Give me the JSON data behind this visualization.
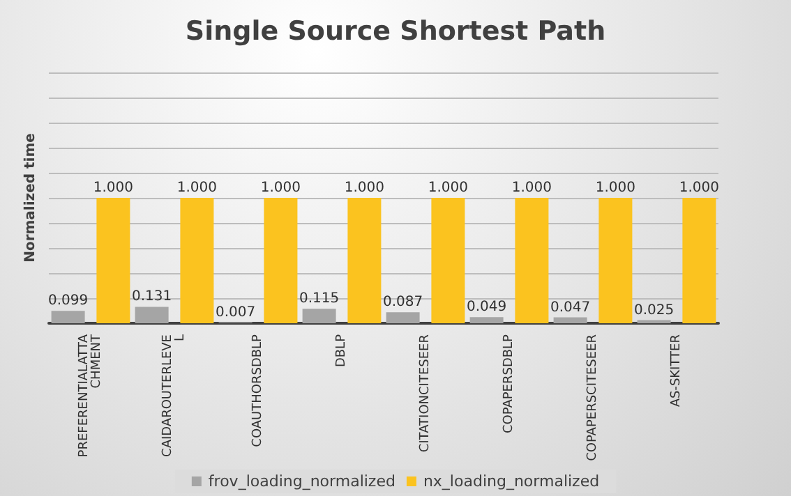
{
  "chart_data": {
    "type": "bar",
    "title": "Single Source Shortest Path",
    "ylabel": "Normalized time",
    "categories": [
      "PREFERENTIALATTACHMENT",
      "CAIDAROUTERLEVEL",
      "COAUTHORSDBLP",
      "DBLP",
      "CITATIONCITESEER",
      "COPAPERSDBLP",
      "COPAPERSCITESEER",
      "AS-SKITTER"
    ],
    "series": [
      {
        "name": "frov_loading_normalized",
        "color": "#a5a5a5",
        "values": [
          0.099,
          0.131,
          0.007,
          0.115,
          0.087,
          0.049,
          0.047,
          0.025
        ],
        "value_labels": [
          "0.099",
          "0.131",
          "0.007",
          "0.115",
          "0.087",
          "0.049",
          "0.047",
          "0.025"
        ]
      },
      {
        "name": "nx_loading_normalized",
        "color": "#fbc31f",
        "values": [
          1.0,
          1.0,
          1.0,
          1.0,
          1.0,
          1.0,
          1.0,
          1.0
        ],
        "value_labels": [
          "1.000",
          "1.000",
          "1.000",
          "1.000",
          "1.000",
          "1.000",
          "1.000",
          "1.000"
        ]
      }
    ],
    "ylim": [
      0,
      2
    ],
    "yticks": [
      {
        "value": 0,
        "label": null
      },
      {
        "value": 0.2,
        "label": null
      },
      {
        "value": 0.4,
        "label": null
      },
      {
        "value": 0.6,
        "label": null
      },
      {
        "value": 0.8,
        "label": null
      },
      {
        "value": 1,
        "label": null
      },
      {
        "value": 1.2,
        "label": null
      },
      {
        "value": 1.4,
        "label": null
      },
      {
        "value": 1.6,
        "label": null
      },
      {
        "value": 1.8,
        "label": null
      },
      {
        "value": 2,
        "label": null
      }
    ],
    "tick_labels": "x",
    "grid": "y",
    "legend": "bottom"
  }
}
